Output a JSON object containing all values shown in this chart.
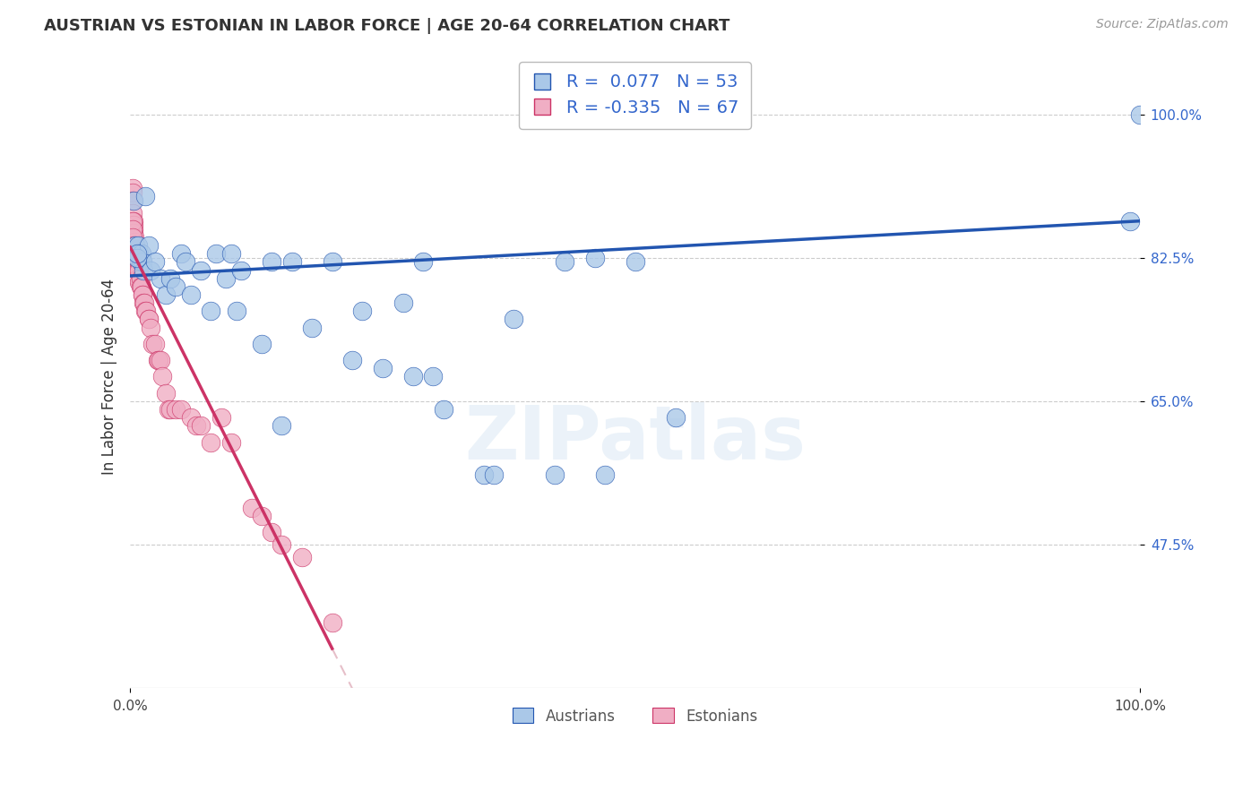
{
  "title": "AUSTRIAN VS ESTONIAN IN LABOR FORCE | AGE 20-64 CORRELATION CHART",
  "source": "Source: ZipAtlas.com",
  "ylabel": "In Labor Force | Age 20-64",
  "xlim": [
    0.0,
    1.0
  ],
  "ylim": [
    0.3,
    1.06
  ],
  "background_color": "#ffffff",
  "austrian_color": "#aac8e8",
  "estonian_color": "#f0aec4",
  "austrian_line_color": "#2255b0",
  "estonian_solid_color": "#cc3366",
  "estonian_dash_color": "#e0b0bc",
  "grid_color": "#cccccc",
  "tick_color": "#3366cc",
  "legend_austrian_r": "0.077",
  "legend_austrian_n": "53",
  "legend_estonian_r": "-0.335",
  "legend_estonian_n": "67",
  "ytick_positions": [
    0.475,
    0.65,
    0.825,
    1.0
  ],
  "ytick_labels": [
    "47.5%",
    "65.0%",
    "82.5%",
    "100.0%"
  ],
  "xtick_positions": [
    0.0,
    1.0
  ],
  "xtick_labels": [
    "0.0%",
    "100.0%"
  ],
  "aus_intercept": 0.803,
  "aus_slope": 0.067,
  "est_intercept": 0.838,
  "est_slope": -2.45,
  "austrian_x": [
    0.003,
    0.005,
    0.008,
    0.009,
    0.01,
    0.011,
    0.012,
    0.013,
    0.015,
    0.018,
    0.02,
    0.025,
    0.03,
    0.035,
    0.04,
    0.045,
    0.05,
    0.055,
    0.06,
    0.07,
    0.08,
    0.085,
    0.095,
    0.1,
    0.105,
    0.11,
    0.13,
    0.14,
    0.16,
    0.18,
    0.2,
    0.22,
    0.23,
    0.27,
    0.29,
    0.3,
    0.35,
    0.42,
    0.47,
    0.5,
    0.54,
    0.99,
    1.0,
    0.007,
    0.007,
    0.25,
    0.31,
    0.38,
    0.43,
    0.46,
    0.36,
    0.28,
    0.15
  ],
  "austrian_y": [
    0.895,
    0.84,
    0.84,
    0.83,
    0.82,
    0.83,
    0.82,
    0.81,
    0.9,
    0.84,
    0.81,
    0.82,
    0.8,
    0.78,
    0.8,
    0.79,
    0.83,
    0.82,
    0.78,
    0.81,
    0.76,
    0.83,
    0.8,
    0.83,
    0.76,
    0.81,
    0.72,
    0.82,
    0.82,
    0.74,
    0.82,
    0.7,
    0.76,
    0.77,
    0.82,
    0.68,
    0.56,
    0.56,
    0.56,
    0.82,
    0.63,
    0.87,
    1.0,
    0.825,
    0.83,
    0.69,
    0.64,
    0.75,
    0.82,
    0.825,
    0.56,
    0.68,
    0.62
  ],
  "estonian_x": [
    0.001,
    0.001,
    0.001,
    0.001,
    0.002,
    0.002,
    0.002,
    0.002,
    0.003,
    0.003,
    0.003,
    0.003,
    0.004,
    0.004,
    0.004,
    0.005,
    0.005,
    0.005,
    0.006,
    0.006,
    0.006,
    0.007,
    0.007,
    0.007,
    0.008,
    0.008,
    0.009,
    0.009,
    0.01,
    0.01,
    0.011,
    0.012,
    0.012,
    0.013,
    0.014,
    0.015,
    0.016,
    0.018,
    0.018,
    0.02,
    0.022,
    0.025,
    0.027,
    0.028,
    0.03,
    0.032,
    0.035,
    0.038,
    0.04,
    0.045,
    0.05,
    0.06,
    0.065,
    0.07,
    0.08,
    0.09,
    0.1,
    0.12,
    0.13,
    0.14,
    0.15,
    0.17,
    0.2,
    0.002,
    0.002,
    0.002,
    0.003
  ],
  "estonian_y": [
    0.84,
    0.85,
    0.845,
    0.84,
    0.91,
    0.905,
    0.895,
    0.88,
    0.87,
    0.865,
    0.86,
    0.855,
    0.85,
    0.845,
    0.84,
    0.84,
    0.835,
    0.83,
    0.825,
    0.82,
    0.82,
    0.815,
    0.81,
    0.81,
    0.81,
    0.8,
    0.81,
    0.795,
    0.8,
    0.79,
    0.79,
    0.78,
    0.78,
    0.77,
    0.77,
    0.76,
    0.76,
    0.75,
    0.75,
    0.74,
    0.72,
    0.72,
    0.7,
    0.7,
    0.7,
    0.68,
    0.66,
    0.64,
    0.64,
    0.64,
    0.64,
    0.63,
    0.62,
    0.62,
    0.6,
    0.63,
    0.6,
    0.52,
    0.51,
    0.49,
    0.475,
    0.46,
    0.38,
    0.87,
    0.86,
    0.85,
    0.84
  ]
}
